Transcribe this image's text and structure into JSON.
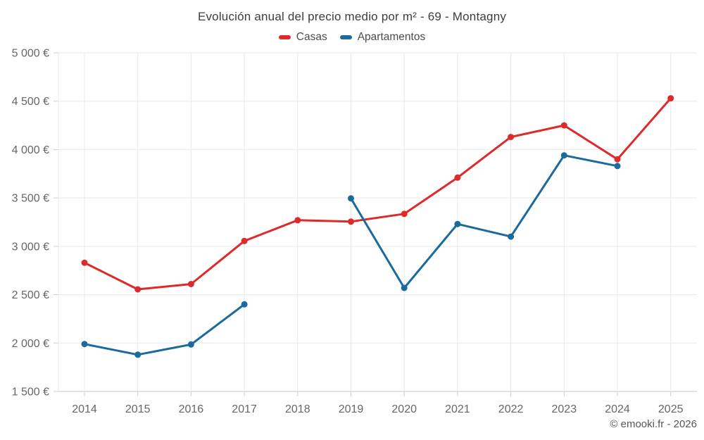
{
  "title": "Evolución anual del precio medio por m² - 69 - Montagny",
  "footer": {
    "text": "© emooki.fr - 2026"
  },
  "legend": {
    "items": [
      {
        "label": "Casas",
        "color": "#de2a2a"
      },
      {
        "label": "Apartamentos",
        "color": "#1a6a9e"
      }
    ]
  },
  "chart_data": {
    "type": "line",
    "title": "Evolución anual del precio medio por m² - 69 - Montagny",
    "xlabel": "",
    "ylabel": "",
    "categories": [
      "2014",
      "2015",
      "2016",
      "2017",
      "2018",
      "2019",
      "2020",
      "2021",
      "2022",
      "2023",
      "2024",
      "2025"
    ],
    "series": [
      {
        "name": "Casas",
        "color": "#de2a2a",
        "values": [
          2830,
          2555,
          2610,
          3055,
          3270,
          3255,
          3335,
          3710,
          4130,
          4250,
          3900,
          4530
        ]
      },
      {
        "name": "Apartamentos",
        "color": "#1a6a9e",
        "values": [
          1990,
          1880,
          1985,
          2400,
          null,
          3495,
          2570,
          3230,
          3100,
          3940,
          3830,
          null
        ]
      }
    ],
    "ylim": [
      1500,
      5000
    ],
    "y_tick_step": 500,
    "y_tick_labels": [
      "1 500 €",
      "2 000 €",
      "2 500 €",
      "3 000 €",
      "3 500 €",
      "4 000 €",
      "4 500 €",
      "5 000 €"
    ],
    "unit": "€",
    "grid": true,
    "legend_position": "top",
    "colors": {
      "grid_line": "#e9e9e9",
      "axis_line": "#c6c6c6",
      "tick_mark": "#cfcfcf",
      "axis_label": "#666666",
      "title_text": "#3d3d3d"
    }
  }
}
